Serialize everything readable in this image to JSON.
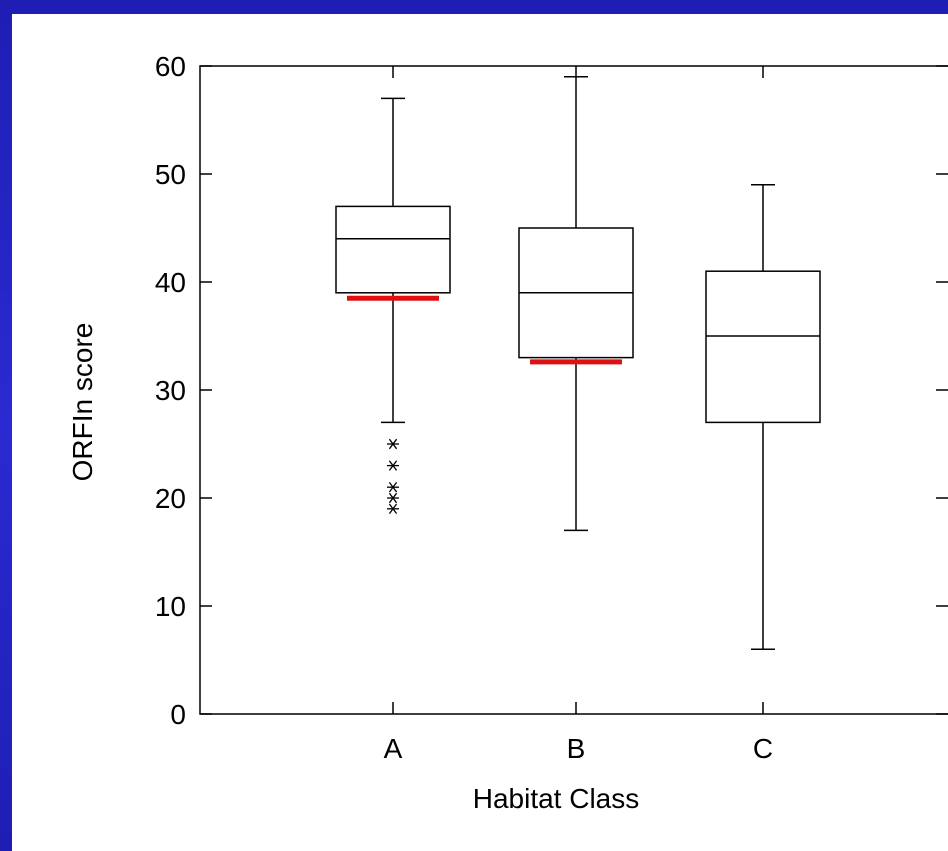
{
  "chart_data": {
    "type": "box",
    "xlabel": "Habitat Class",
    "ylabel": "ORFIn score",
    "ylim": [
      0,
      60
    ],
    "yticks": [
      0,
      10,
      20,
      30,
      40,
      50,
      60
    ],
    "categories": [
      "A",
      "B",
      "C"
    ],
    "boxes": [
      {
        "category": "A",
        "whisker_low": 27,
        "q1": 39,
        "median": 44,
        "q3": 47,
        "whisker_high": 57,
        "outliers": [
          25,
          23,
          21,
          20,
          19
        ],
        "threshold": 38.5
      },
      {
        "category": "B",
        "whisker_low": 17,
        "q1": 33,
        "median": 39,
        "q3": 45,
        "whisker_high": 59,
        "outliers": [],
        "threshold": 32.6
      },
      {
        "category": "C",
        "whisker_low": 6,
        "q1": 27,
        "median": 35,
        "q3": 41,
        "whisker_high": 49,
        "outliers": []
      }
    ],
    "threshold_color": "#e01010",
    "grid": false
  }
}
